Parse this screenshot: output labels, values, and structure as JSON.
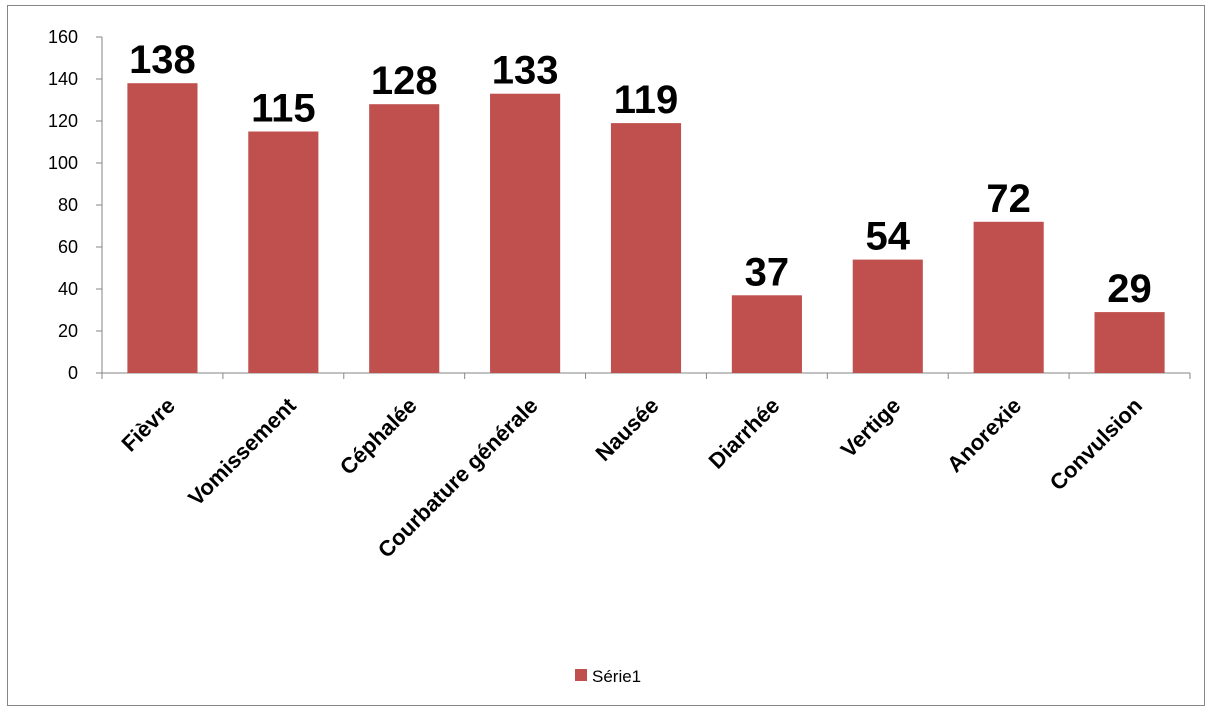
{
  "chart_data": {
    "type": "bar",
    "categories": [
      "Fièvre",
      "Vomissement",
      "Céphalée",
      "Courbature générale",
      "Nausée",
      "Diarrhée",
      "Vertige",
      "Anorexie",
      "Convulsion"
    ],
    "series": [
      {
        "name": "Série1",
        "values": [
          138,
          115,
          128,
          133,
          119,
          37,
          54,
          72,
          29
        ],
        "color": "#C0504D"
      }
    ],
    "ylim": [
      0,
      160
    ],
    "yticks": [
      0,
      20,
      40,
      60,
      80,
      100,
      120,
      140,
      160
    ],
    "data_labels": true,
    "grid": false,
    "legend_position": "bottom"
  }
}
